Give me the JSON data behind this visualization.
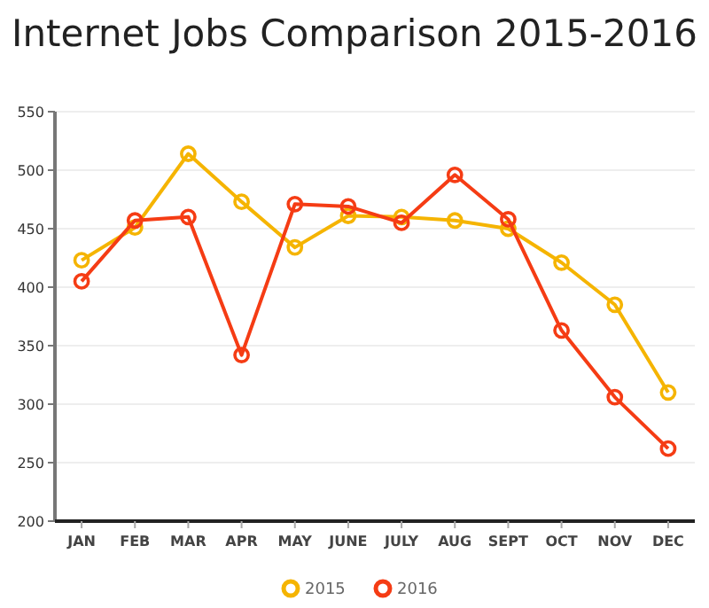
{
  "chart_data": {
    "type": "line",
    "title": "Internet Jobs Comparison 2015-2016",
    "categories": [
      "JAN",
      "FEB",
      "MAR",
      "APR",
      "MAY",
      "JUNE",
      "JULY",
      "AUG",
      "SEPT",
      "OCT",
      "NOV",
      "DEC"
    ],
    "series": [
      {
        "name": "2015",
        "color": "#f5b400",
        "values": [
          423,
          451,
          514,
          473,
          434,
          461,
          460,
          457,
          450,
          421,
          385,
          310
        ]
      },
      {
        "name": "2016",
        "color": "#f53c14",
        "values": [
          405,
          457,
          460,
          342,
          471,
          469,
          455,
          496,
          458,
          363,
          306,
          262
        ]
      }
    ],
    "ylim": [
      200,
      550
    ],
    "yticks": [
      200,
      250,
      300,
      350,
      400,
      450,
      500,
      550
    ],
    "grid": "y",
    "legend": "bottom",
    "marker": "circle",
    "line_style": "solid"
  }
}
